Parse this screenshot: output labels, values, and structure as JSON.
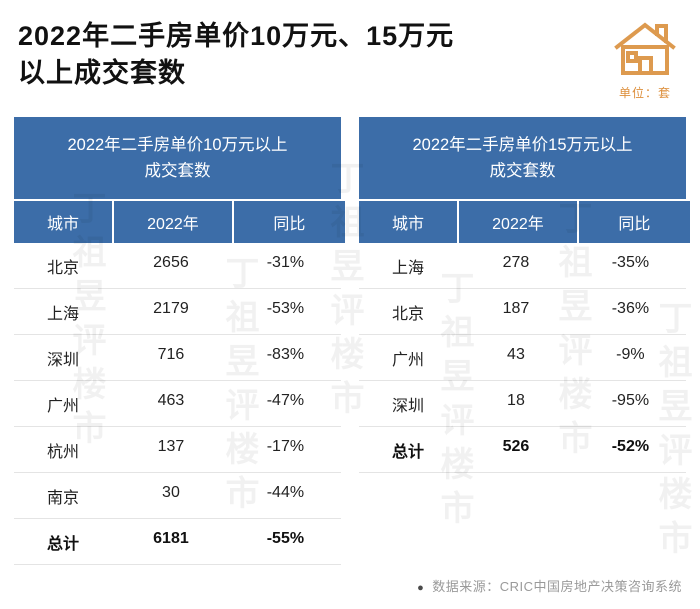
{
  "page": {
    "title_line1": "2022年二手房单价10万元、15万元",
    "title_line2": "以上成交套数",
    "unit_label": "单位：套",
    "source_bullet": "●",
    "source": "数据来源：CRIC中国房地产决策咨询系统",
    "watermark": "丁祖昱评楼市"
  },
  "colors": {
    "header_blue": "#3c6da8",
    "accent_orange": "#dd8f3c",
    "row_border": "#e4e4e4",
    "source_gray": "#9a9a9a"
  },
  "icons": {
    "house_icon": "house-icon",
    "source_dot": "dot-icon"
  },
  "chart_data": [
    {
      "type": "table",
      "title_line1": "2022年二手房单价10万元以上",
      "title_line2": "成交套数",
      "columns": [
        "城市",
        "2022年",
        "同比"
      ],
      "rows": [
        [
          "北京",
          "2656",
          "-31%"
        ],
        [
          "上海",
          "2179",
          "-53%"
        ],
        [
          "深圳",
          "716",
          "-83%"
        ],
        [
          "广州",
          "463",
          "-47%"
        ],
        [
          "杭州",
          "137",
          "-17%"
        ],
        [
          "南京",
          "30",
          "-44%"
        ],
        [
          "总计",
          "6181",
          "-55%"
        ]
      ],
      "total_row_bold": true
    },
    {
      "type": "table",
      "title_line1": "2022年二手房单价15万元以上",
      "title_line2": "成交套数",
      "columns": [
        "城市",
        "2022年",
        "同比"
      ],
      "rows": [
        [
          "上海",
          "278",
          "-35%"
        ],
        [
          "北京",
          "187",
          "-36%"
        ],
        [
          "广州",
          "43",
          "-9%"
        ],
        [
          "深圳",
          "18",
          "-95%"
        ],
        [
          "总计",
          "526",
          "-52%"
        ]
      ],
      "total_row_bold": true
    }
  ]
}
